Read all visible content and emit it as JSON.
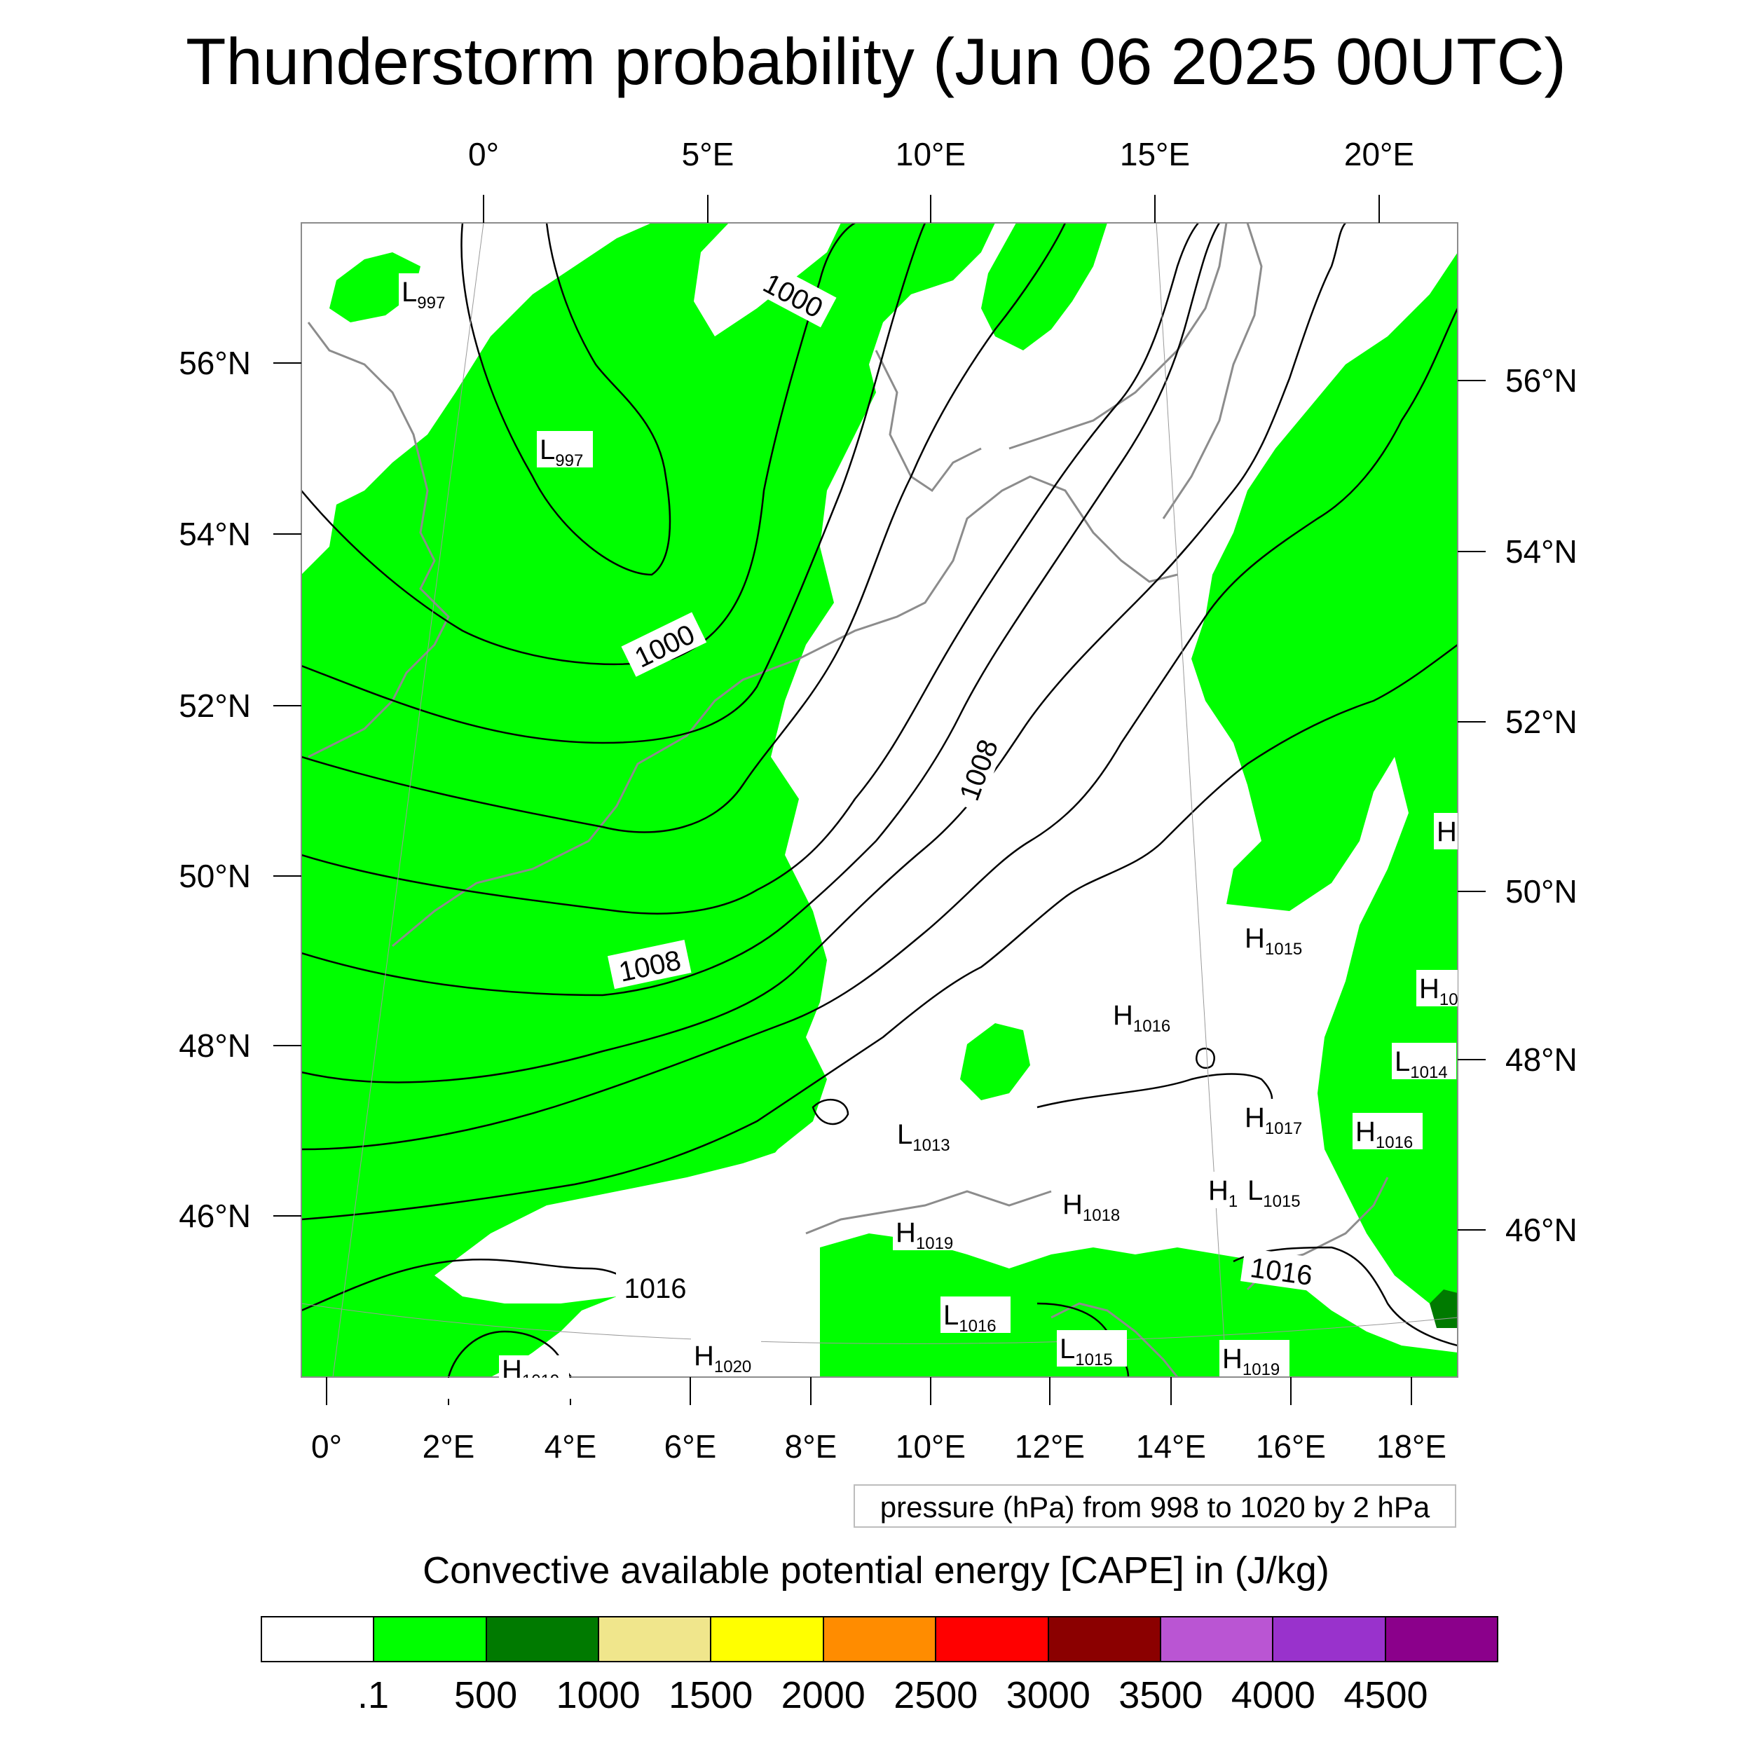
{
  "title": "Thunderstorm probability (Jun 06 2025 00UTC)",
  "top_lon_labels": [
    "0°",
    "5°E",
    "10°E",
    "15°E",
    "20°E"
  ],
  "bottom_lon_labels": [
    "0°",
    "2°E",
    "4°E",
    "6°E",
    "8°E",
    "10°E",
    "12°E",
    "14°E",
    "16°E",
    "18°E"
  ],
  "left_lat_labels": [
    "56°N",
    "54°N",
    "52°N",
    "50°N",
    "48°N",
    "46°N"
  ],
  "right_lat_labels": [
    "56°N",
    "54°N",
    "52°N",
    "50°N",
    "48°N",
    "46°N"
  ],
  "contour_labels": [
    "1000",
    "1000",
    "1008",
    "1008",
    "1016",
    "1016"
  ],
  "pressure_centers": [
    {
      "type": "L",
      "value": "997"
    },
    {
      "type": "L",
      "value": "997"
    },
    {
      "type": "H",
      "value": ""
    },
    {
      "type": "H",
      "value": "1015"
    },
    {
      "type": "H",
      "value": "10"
    },
    {
      "type": "H",
      "value": "1016"
    },
    {
      "type": "L",
      "value": "1014"
    },
    {
      "type": "H",
      "value": "1017"
    },
    {
      "type": "H",
      "value": "1016"
    },
    {
      "type": "L",
      "value": "1013"
    },
    {
      "type": "H",
      "value": "1"
    },
    {
      "type": "L",
      "value": "1015"
    },
    {
      "type": "H",
      "value": "1018"
    },
    {
      "type": "H",
      "value": "1019"
    },
    {
      "type": "L",
      "value": "1016"
    },
    {
      "type": "L",
      "value": "1015"
    },
    {
      "type": "H",
      "value": "1019"
    },
    {
      "type": "H",
      "value": "1020"
    },
    {
      "type": "H",
      "value": "1019"
    }
  ],
  "pressure_note": "pressure (hPa) from 998 to 1020 by 2 hPa",
  "colorbar": {
    "title": "Convective available potential energy [CAPE] in (J/kg)",
    "colors": [
      "#ffffff",
      "#00ff00",
      "#007a00",
      "#f0e68c",
      "#ffff00",
      "#ff8c00",
      "#ff0000",
      "#8b0000",
      "#ba55d3",
      "#9932cc",
      "#8b008b"
    ],
    "labels": [
      ".1",
      "500",
      "1000",
      "1500",
      "2000",
      "2500",
      "3000",
      "3500",
      "4000",
      "4500"
    ]
  },
  "colors": {
    "cape_green": "#00ff00",
    "coast": "#8c8c8c",
    "isobar": "#000000"
  }
}
